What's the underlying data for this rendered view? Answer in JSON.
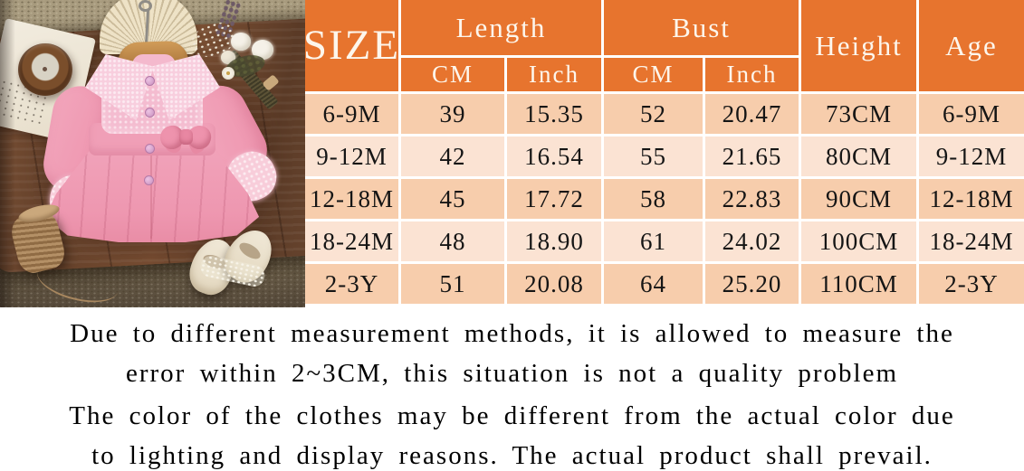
{
  "colors": {
    "header_orange": "#E7742E",
    "row_peach_dark": "#F7CDAC",
    "row_peach_light": "#FBE3D3",
    "grid_line": "#FFFFFF",
    "data_text": "#151515",
    "header_text": "#FDF6EC",
    "coat_pink": "#F09FB7",
    "collar_pink": "#F8CEDE",
    "wood_brown": "#6B4630"
  },
  "size_table": {
    "size_header": "SIZE",
    "col_groups": [
      {
        "label": "Length",
        "subcols": [
          "CM",
          "Inch"
        ]
      },
      {
        "label": "Bust",
        "subcols": [
          "CM",
          "Inch"
        ]
      }
    ],
    "height_header": "Height",
    "age_header": "Age",
    "rows": [
      {
        "size": "6-9M",
        "length_cm": "39",
        "length_inch": "15.35",
        "bust_cm": "52",
        "bust_inch": "20.47",
        "height": "73CM",
        "age": "6-9M"
      },
      {
        "size": "9-12M",
        "length_cm": "42",
        "length_inch": "16.54",
        "bust_cm": "55",
        "bust_inch": "21.65",
        "height": "80CM",
        "age": "9-12M"
      },
      {
        "size": "12-18M",
        "length_cm": "45",
        "length_inch": "17.72",
        "bust_cm": "58",
        "bust_inch": "22.83",
        "height": "90CM",
        "age": "12-18M"
      },
      {
        "size": "18-24M",
        "length_cm": "48",
        "length_inch": "18.90",
        "bust_cm": "61",
        "bust_inch": "24.02",
        "height": "100CM",
        "age": "18-24M"
      },
      {
        "size": "2-3Y",
        "length_cm": "51",
        "length_inch": "20.08",
        "bust_cm": "64",
        "bust_inch": "25.20",
        "height": "110CM",
        "age": "2-3Y"
      }
    ]
  },
  "notes": {
    "measurement": {
      "line1": "Due to different measurement methods, it is allowed to measure the",
      "line2": "error within 2~3CM, this situation is not a quality problem"
    },
    "color_disclaimer": {
      "line1": "The color of the clothes may be different from the actual color due",
      "line2": "to lighting and display reasons. The actual product shall prevail."
    }
  },
  "photo": {
    "items": [
      "paper-fan",
      "wooden-hanger",
      "pink-coat",
      "bow",
      "dried-flowers",
      "notepad",
      "wooden-bowl",
      "twine-spool",
      "baby-shoes",
      "rug",
      "wood-table"
    ]
  }
}
